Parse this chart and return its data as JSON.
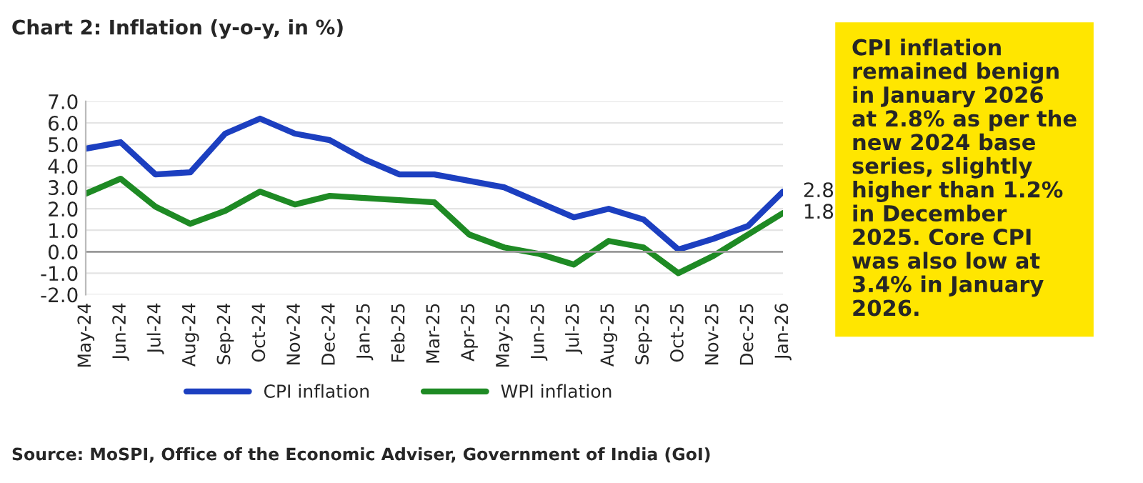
{
  "chart_data": {
    "type": "line",
    "title": "Chart 2: Inflation (y-o-y, in %)",
    "categories": [
      "May-24",
      "Jun-24",
      "Jul-24",
      "Aug-24",
      "Sep-24",
      "Oct-24",
      "Nov-24",
      "Dec-24",
      "Jan-25",
      "Feb-25",
      "Mar-25",
      "Apr-25",
      "May-25",
      "Jun-25",
      "Jul-25",
      "Aug-25",
      "Sep-25",
      "Oct-25",
      "Nov-25",
      "Dec-25",
      "Jan-26"
    ],
    "series": [
      {
        "name": "CPI inflation",
        "color": "#1c3fc0",
        "values": [
          4.8,
          5.1,
          3.6,
          3.7,
          5.5,
          6.2,
          5.5,
          5.2,
          4.3,
          3.6,
          3.6,
          3.3,
          3.0,
          2.3,
          1.6,
          2.0,
          1.5,
          0.1,
          0.6,
          1.2,
          2.8
        ],
        "value_labels": [
          null,
          null,
          null,
          null,
          null,
          null,
          null,
          null,
          null,
          null,
          null,
          null,
          null,
          null,
          null,
          null,
          null,
          null,
          null,
          null,
          "2.8"
        ]
      },
      {
        "name": "WPI inflation",
        "color": "#1e8a24",
        "values": [
          2.7,
          3.4,
          2.1,
          1.3,
          1.9,
          2.8,
          2.2,
          2.6,
          2.5,
          2.4,
          2.3,
          0.8,
          0.2,
          -0.1,
          -0.6,
          0.5,
          0.2,
          -1.0,
          -0.2,
          0.8,
          1.8
        ],
        "value_labels": [
          null,
          null,
          null,
          null,
          null,
          null,
          null,
          null,
          null,
          null,
          null,
          null,
          null,
          null,
          null,
          null,
          null,
          null,
          null,
          null,
          "1.8"
        ]
      }
    ],
    "ylim": [
      -2.0,
      7.0
    ],
    "yticks": [
      {
        "value": -2,
        "label": "-2.0"
      },
      {
        "value": -1,
        "label": "-1.0"
      },
      {
        "value": 0,
        "label": "0.0"
      },
      {
        "value": 1,
        "label": "1.0"
      },
      {
        "value": 2,
        "label": "2.0"
      },
      {
        "value": 3,
        "label": "3.0"
      },
      {
        "value": 4,
        "label": "4.0"
      },
      {
        "value": 5,
        "label": "5.0"
      },
      {
        "value": 6,
        "label": "6.0"
      },
      {
        "value": 7,
        "label": "7.0"
      }
    ],
    "grid": "y",
    "legend": "bottom",
    "line_style": "solid",
    "marker": "none",
    "annotations": [
      "CPI inflation\nremained benign\nin January 2026\nat 2.8% as per the\nnew 2024 base\nseries, slightly\nhigher than 1.2%\nin December\n2025. Core CPI\nwas also low at\n3.4% in January\n2026.",
      "Source: MoSPI, Office of the Economic Adviser, Government of India (GoI)"
    ]
  }
}
